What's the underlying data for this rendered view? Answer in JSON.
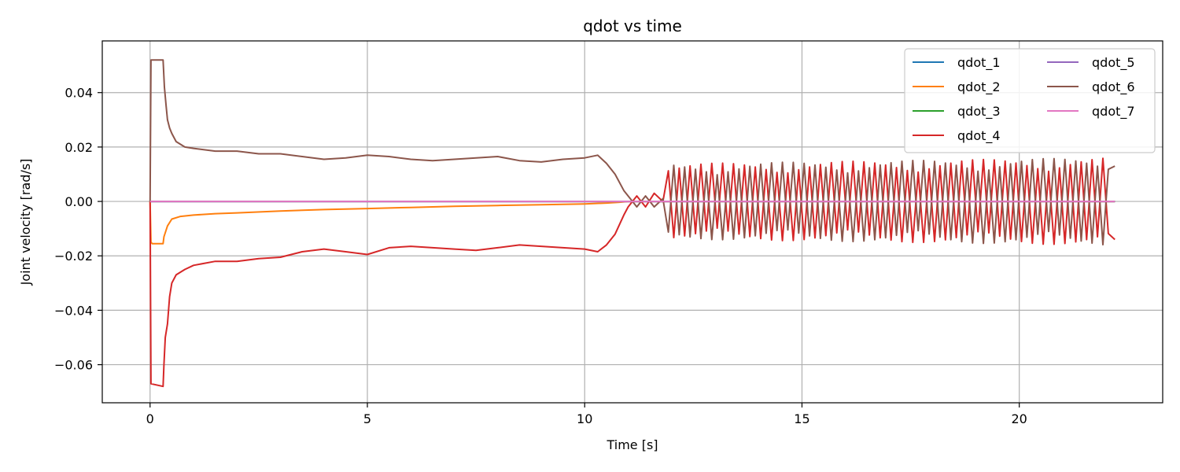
{
  "chart_data": {
    "type": "line",
    "title": "qdot vs time",
    "xlabel": "Time [s]",
    "ylabel": "Joint velocity [rad/s]",
    "xlim": [
      -1.1,
      23.3
    ],
    "ylim": [
      -0.074,
      0.059
    ],
    "xticks": [
      0,
      5,
      10,
      15,
      20
    ],
    "xtick_labels": [
      "0",
      "5",
      "10",
      "15",
      "20"
    ],
    "yticks": [
      -0.06,
      -0.04,
      -0.02,
      0.0,
      0.02,
      0.04
    ],
    "ytick_labels": [
      "−0.06",
      "−0.04",
      "−0.02",
      "0.00",
      "0.02",
      "0.04"
    ],
    "grid": true,
    "legend_position": "top-right",
    "legend_columns": 2,
    "series": [
      {
        "name": "qdot_1",
        "color": "#1f77b4",
        "x": [
          0,
          22.2
        ],
        "y": [
          0,
          0
        ]
      },
      {
        "name": "qdot_2",
        "color": "#ff7f0e",
        "x": [
          0,
          0.02,
          0.05,
          0.3,
          0.32,
          0.4,
          0.5,
          0.7,
          1.0,
          1.5,
          2,
          3,
          4,
          5,
          6,
          7,
          8,
          9,
          10,
          10.5,
          10.8,
          11.0,
          22.2
        ],
        "y": [
          0,
          -0.015,
          -0.0155,
          -0.0155,
          -0.013,
          -0.009,
          -0.0065,
          -0.0055,
          -0.005,
          -0.0045,
          -0.0042,
          -0.0035,
          -0.003,
          -0.0026,
          -0.0022,
          -0.0018,
          -0.0015,
          -0.0012,
          -0.0009,
          -0.0006,
          -0.0003,
          0,
          0
        ]
      },
      {
        "name": "qdot_3",
        "color": "#2ca02c",
        "x": [
          0,
          22.2
        ],
        "y": [
          0,
          0
        ]
      },
      {
        "name": "qdot_4",
        "color": "#d62728",
        "x": [
          0,
          0.02,
          0.3,
          0.32,
          0.35,
          0.4,
          0.45,
          0.5,
          0.6,
          0.8,
          1.0,
          1.5,
          2.0,
          2.5,
          3.0,
          3.5,
          4.0,
          4.5,
          5.0,
          5.5,
          6.0,
          6.5,
          7.0,
          7.5,
          8.0,
          8.5,
          9.0,
          9.5,
          10.0,
          10.3,
          10.5,
          10.7,
          10.9,
          11.0,
          11.2,
          11.4,
          11.6,
          11.8
        ],
        "y": [
          0,
          -0.067,
          -0.068,
          -0.06,
          -0.05,
          -0.045,
          -0.035,
          -0.03,
          -0.027,
          -0.025,
          -0.0235,
          -0.022,
          -0.022,
          -0.021,
          -0.0205,
          -0.0185,
          -0.0175,
          -0.0185,
          -0.0195,
          -0.017,
          -0.0165,
          -0.017,
          -0.0175,
          -0.018,
          -0.017,
          -0.016,
          -0.0165,
          -0.017,
          -0.0175,
          -0.0185,
          -0.016,
          -0.012,
          -0.005,
          -0.002,
          0.002,
          -0.002,
          0.003,
          0.0
        ]
      },
      {
        "name": "qdot_5",
        "color": "#9467bd",
        "x": [
          0,
          22.2
        ],
        "y": [
          0,
          0
        ]
      },
      {
        "name": "qdot_6",
        "color": "#8c564b",
        "x": [
          0,
          0.02,
          0.3,
          0.33,
          0.37,
          0.4,
          0.45,
          0.5,
          0.6,
          0.8,
          1.0,
          1.5,
          2.0,
          2.5,
          3.0,
          3.5,
          4.0,
          4.5,
          5.0,
          5.5,
          6.0,
          6.5,
          7.0,
          7.5,
          8.0,
          8.5,
          9.0,
          9.5,
          10.0,
          10.3,
          10.5,
          10.7,
          10.9,
          11.0,
          11.2,
          11.4,
          11.6,
          11.8
        ],
        "y": [
          0,
          0.052,
          0.052,
          0.042,
          0.035,
          0.03,
          0.027,
          0.025,
          0.022,
          0.02,
          0.0195,
          0.0185,
          0.0185,
          0.0175,
          0.0175,
          0.0165,
          0.0155,
          0.016,
          0.017,
          0.0165,
          0.0155,
          0.015,
          0.0155,
          0.016,
          0.0165,
          0.015,
          0.0145,
          0.0155,
          0.016,
          0.017,
          0.014,
          0.01,
          0.004,
          0.002,
          -0.002,
          0.002,
          -0.002,
          0.001
        ]
      },
      {
        "name": "qdot_7",
        "color": "#e377c2",
        "x": [
          0,
          22.2
        ],
        "y": [
          0,
          0
        ]
      }
    ],
    "oscillation": {
      "series": [
        "qdot_4",
        "qdot_6"
      ],
      "x_start": 11.8,
      "x_end": 22.2,
      "period": 0.25,
      "amplitude_start": 0.012,
      "amplitude_end": 0.014,
      "end_values": {
        "qdot_4": -0.014,
        "qdot_6": 0.013
      }
    }
  }
}
